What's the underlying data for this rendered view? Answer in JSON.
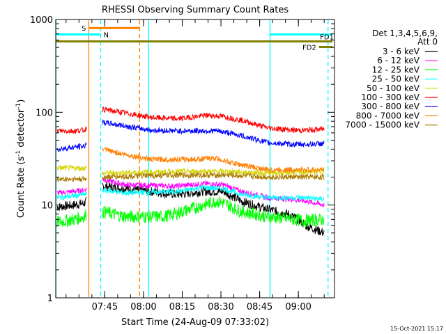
{
  "chart_data": {
    "type": "line",
    "title": "RHESSI Observing Summary Count Rates",
    "xlabel": "Start Time (24-Aug-09 07:33:02)",
    "ylabel": "Count Rate (s",
    "ylabel_sup": "-1",
    "ylabel_tail": " detector",
    "ylabel_tail_sup": "-1",
    "ylabel_close": ")",
    "yscale": "log",
    "ylim": [
      1,
      1000
    ],
    "xlim_minutes": [
      -7,
      101
    ],
    "y_ticks": [
      {
        "value": 1,
        "label": "1"
      },
      {
        "value": 10,
        "label": "10"
      },
      {
        "value": 100,
        "label": "100"
      },
      {
        "value": 1000,
        "label": "1000"
      }
    ],
    "x_ticks": [
      {
        "minutes": 12,
        "label": "07:45"
      },
      {
        "minutes": 27,
        "label": "08:00"
      },
      {
        "minutes": 42,
        "label": "08:15"
      },
      {
        "minutes": 57,
        "label": "08:30"
      },
      {
        "minutes": 72,
        "label": "08:45"
      },
      {
        "minutes": 87,
        "label": "09:00"
      }
    ],
    "legend_header": [
      "Det 1,3,4,5,6,9,",
      "Att 0"
    ],
    "series": [
      {
        "name": "3 - 6 keV",
        "color": "#000000",
        "segments": [
          [
            [
              -6.5,
              9.5
            ],
            [
              0,
              10
            ],
            [
              4,
              10.5
            ],
            [
              5,
              11
            ]
          ],
          [
            [
              11,
              16
            ],
            [
              20,
              15
            ],
            [
              40,
              13
            ],
            [
              50,
              14
            ],
            [
              58,
              14
            ],
            [
              65,
              11
            ],
            [
              75,
              9
            ],
            [
              83,
              8
            ],
            [
              87,
              7
            ],
            [
              90,
              6
            ],
            [
              97,
              5
            ]
          ]
        ]
      },
      {
        "name": "6 - 12 keV",
        "color": "#ff00ff",
        "segments": [
          [
            [
              -6.5,
              13.5
            ],
            [
              0,
              14
            ],
            [
              4,
              14.5
            ],
            [
              5,
              15
            ]
          ],
          [
            [
              11,
              19
            ],
            [
              20,
              16.5
            ],
            [
              40,
              16
            ],
            [
              50,
              17
            ],
            [
              58,
              16.5
            ],
            [
              65,
              14
            ],
            [
              75,
              12
            ],
            [
              85,
              11.5
            ],
            [
              90,
              11
            ],
            [
              97,
              10
            ]
          ]
        ]
      },
      {
        "name": "12 - 25 keV",
        "color": "#00ff00",
        "segments": [
          [
            [
              -6.5,
              6.5
            ],
            [
              0,
              7
            ],
            [
              4,
              7.5
            ],
            [
              5,
              8
            ]
          ],
          [
            [
              11,
              8.5
            ],
            [
              20,
              7.5
            ],
            [
              35,
              7.5
            ],
            [
              45,
              9
            ],
            [
              55,
              11
            ],
            [
              58,
              10.5
            ],
            [
              65,
              8.5
            ],
            [
              75,
              7.5
            ],
            [
              85,
              7
            ],
            [
              90,
              6.8
            ],
            [
              97,
              7
            ]
          ]
        ]
      },
      {
        "name": "25 - 50 keV",
        "color": "#00ffff",
        "segments": [
          [
            [
              -6.5,
              12
            ],
            [
              0,
              12.5
            ],
            [
              4,
              13
            ],
            [
              5,
              13
            ]
          ],
          [
            [
              11,
              14.5
            ],
            [
              20,
              13.5
            ],
            [
              40,
              14
            ],
            [
              50,
              15.5
            ],
            [
              58,
              15
            ],
            [
              65,
              13
            ],
            [
              75,
              12
            ],
            [
              85,
              12
            ],
            [
              90,
              12
            ],
            [
              97,
              11.5
            ]
          ]
        ]
      },
      {
        "name": "50 - 100 keV",
        "color": "#d4d400",
        "segments": [
          [
            [
              -6.5,
              25
            ],
            [
              5,
              25
            ]
          ],
          [
            [
              11,
              22
            ],
            [
              40,
              23
            ],
            [
              60,
              23
            ],
            [
              75,
              22
            ],
            [
              97,
              23
            ]
          ]
        ]
      },
      {
        "name": "100 - 300 keV",
        "color": "#ff0000",
        "segments": [
          [
            [
              -6.5,
              63
            ],
            [
              0,
              63
            ],
            [
              4,
              64
            ],
            [
              5,
              68
            ]
          ],
          [
            [
              11,
              108
            ],
            [
              20,
              98
            ],
            [
              30,
              88
            ],
            [
              40,
              85
            ],
            [
              52,
              93
            ],
            [
              58,
              90
            ],
            [
              65,
              82
            ],
            [
              75,
              68
            ],
            [
              85,
              64
            ],
            [
              90,
              64
            ],
            [
              97,
              66
            ]
          ]
        ]
      },
      {
        "name": "300 - 800 keV",
        "color": "#0000ff",
        "segments": [
          [
            [
              -6.5,
              40
            ],
            [
              0,
              42
            ],
            [
              4,
              43
            ],
            [
              5,
              47
            ]
          ],
          [
            [
              11,
              78
            ],
            [
              20,
              71
            ],
            [
              30,
              64
            ],
            [
              40,
              63
            ],
            [
              55,
              63
            ],
            [
              60,
              60
            ],
            [
              65,
              56
            ],
            [
              75,
              47
            ],
            [
              85,
              45
            ],
            [
              90,
              45
            ],
            [
              97,
              46
            ]
          ]
        ]
      },
      {
        "name": "800 - 7000 keV",
        "color": "#ff8000",
        "segments": [
          [
            [
              11,
              40
            ],
            [
              20,
              35
            ],
            [
              30,
              31
            ],
            [
              45,
              31
            ],
            [
              55,
              32
            ],
            [
              60,
              29
            ],
            [
              65,
              27
            ],
            [
              75,
              24
            ],
            [
              85,
              24
            ],
            [
              90,
              24
            ],
            [
              97,
              24
            ]
          ]
        ]
      },
      {
        "name": "7000 - 15000 keV",
        "color": "#aa7a00",
        "segments": [
          [
            [
              -6.5,
              19
            ],
            [
              5,
              19
            ]
          ],
          [
            [
              11,
              20
            ],
            [
              40,
              21
            ],
            [
              60,
              21
            ],
            [
              75,
              20
            ],
            [
              97,
              20
            ]
          ]
        ]
      }
    ],
    "vertical_lines": [
      {
        "minutes": -6.9,
        "color": "#00ffff",
        "style": "solid"
      },
      {
        "minutes": 5.8,
        "color": "#ff8000",
        "style": "solid"
      },
      {
        "minutes": 10.4,
        "color": "#00ffff",
        "style": "dashed"
      },
      {
        "minutes": 25.5,
        "color": "#ff8000",
        "style": "dashed"
      },
      {
        "minutes": 29.0,
        "color": "#00ffff",
        "style": "solid"
      },
      {
        "minutes": 76.0,
        "color": "#00ffff",
        "style": "solid"
      },
      {
        "minutes": 98.5,
        "color": "#00ffff",
        "style": "dashed"
      }
    ],
    "interval_bars": [
      {
        "label": "S",
        "color": "#ff8000",
        "x_start": 5.8,
        "x_end": 25.5,
        "y_value": 810,
        "label_side": "left"
      },
      {
        "label": "N",
        "color": "#00ffff",
        "x_start": -7,
        "x_end": 10.4,
        "y_value": 690,
        "label_side": "right"
      },
      {
        "label": "N",
        "color": "#00ffff",
        "x_start": 76.0,
        "x_end": 101,
        "y_value": 690,
        "label_side": "none"
      },
      {
        "label": "FD1",
        "color": "#808000",
        "x_start": -7,
        "x_end": 101,
        "y_value": 580,
        "label_side": "above-right"
      },
      {
        "label": "FD2",
        "color": "#808000",
        "x_start": 95.0,
        "x_end": 101,
        "y_value": 505,
        "label_side": "left"
      }
    ],
    "timestamp": "15-Oct-2021 15:17"
  }
}
